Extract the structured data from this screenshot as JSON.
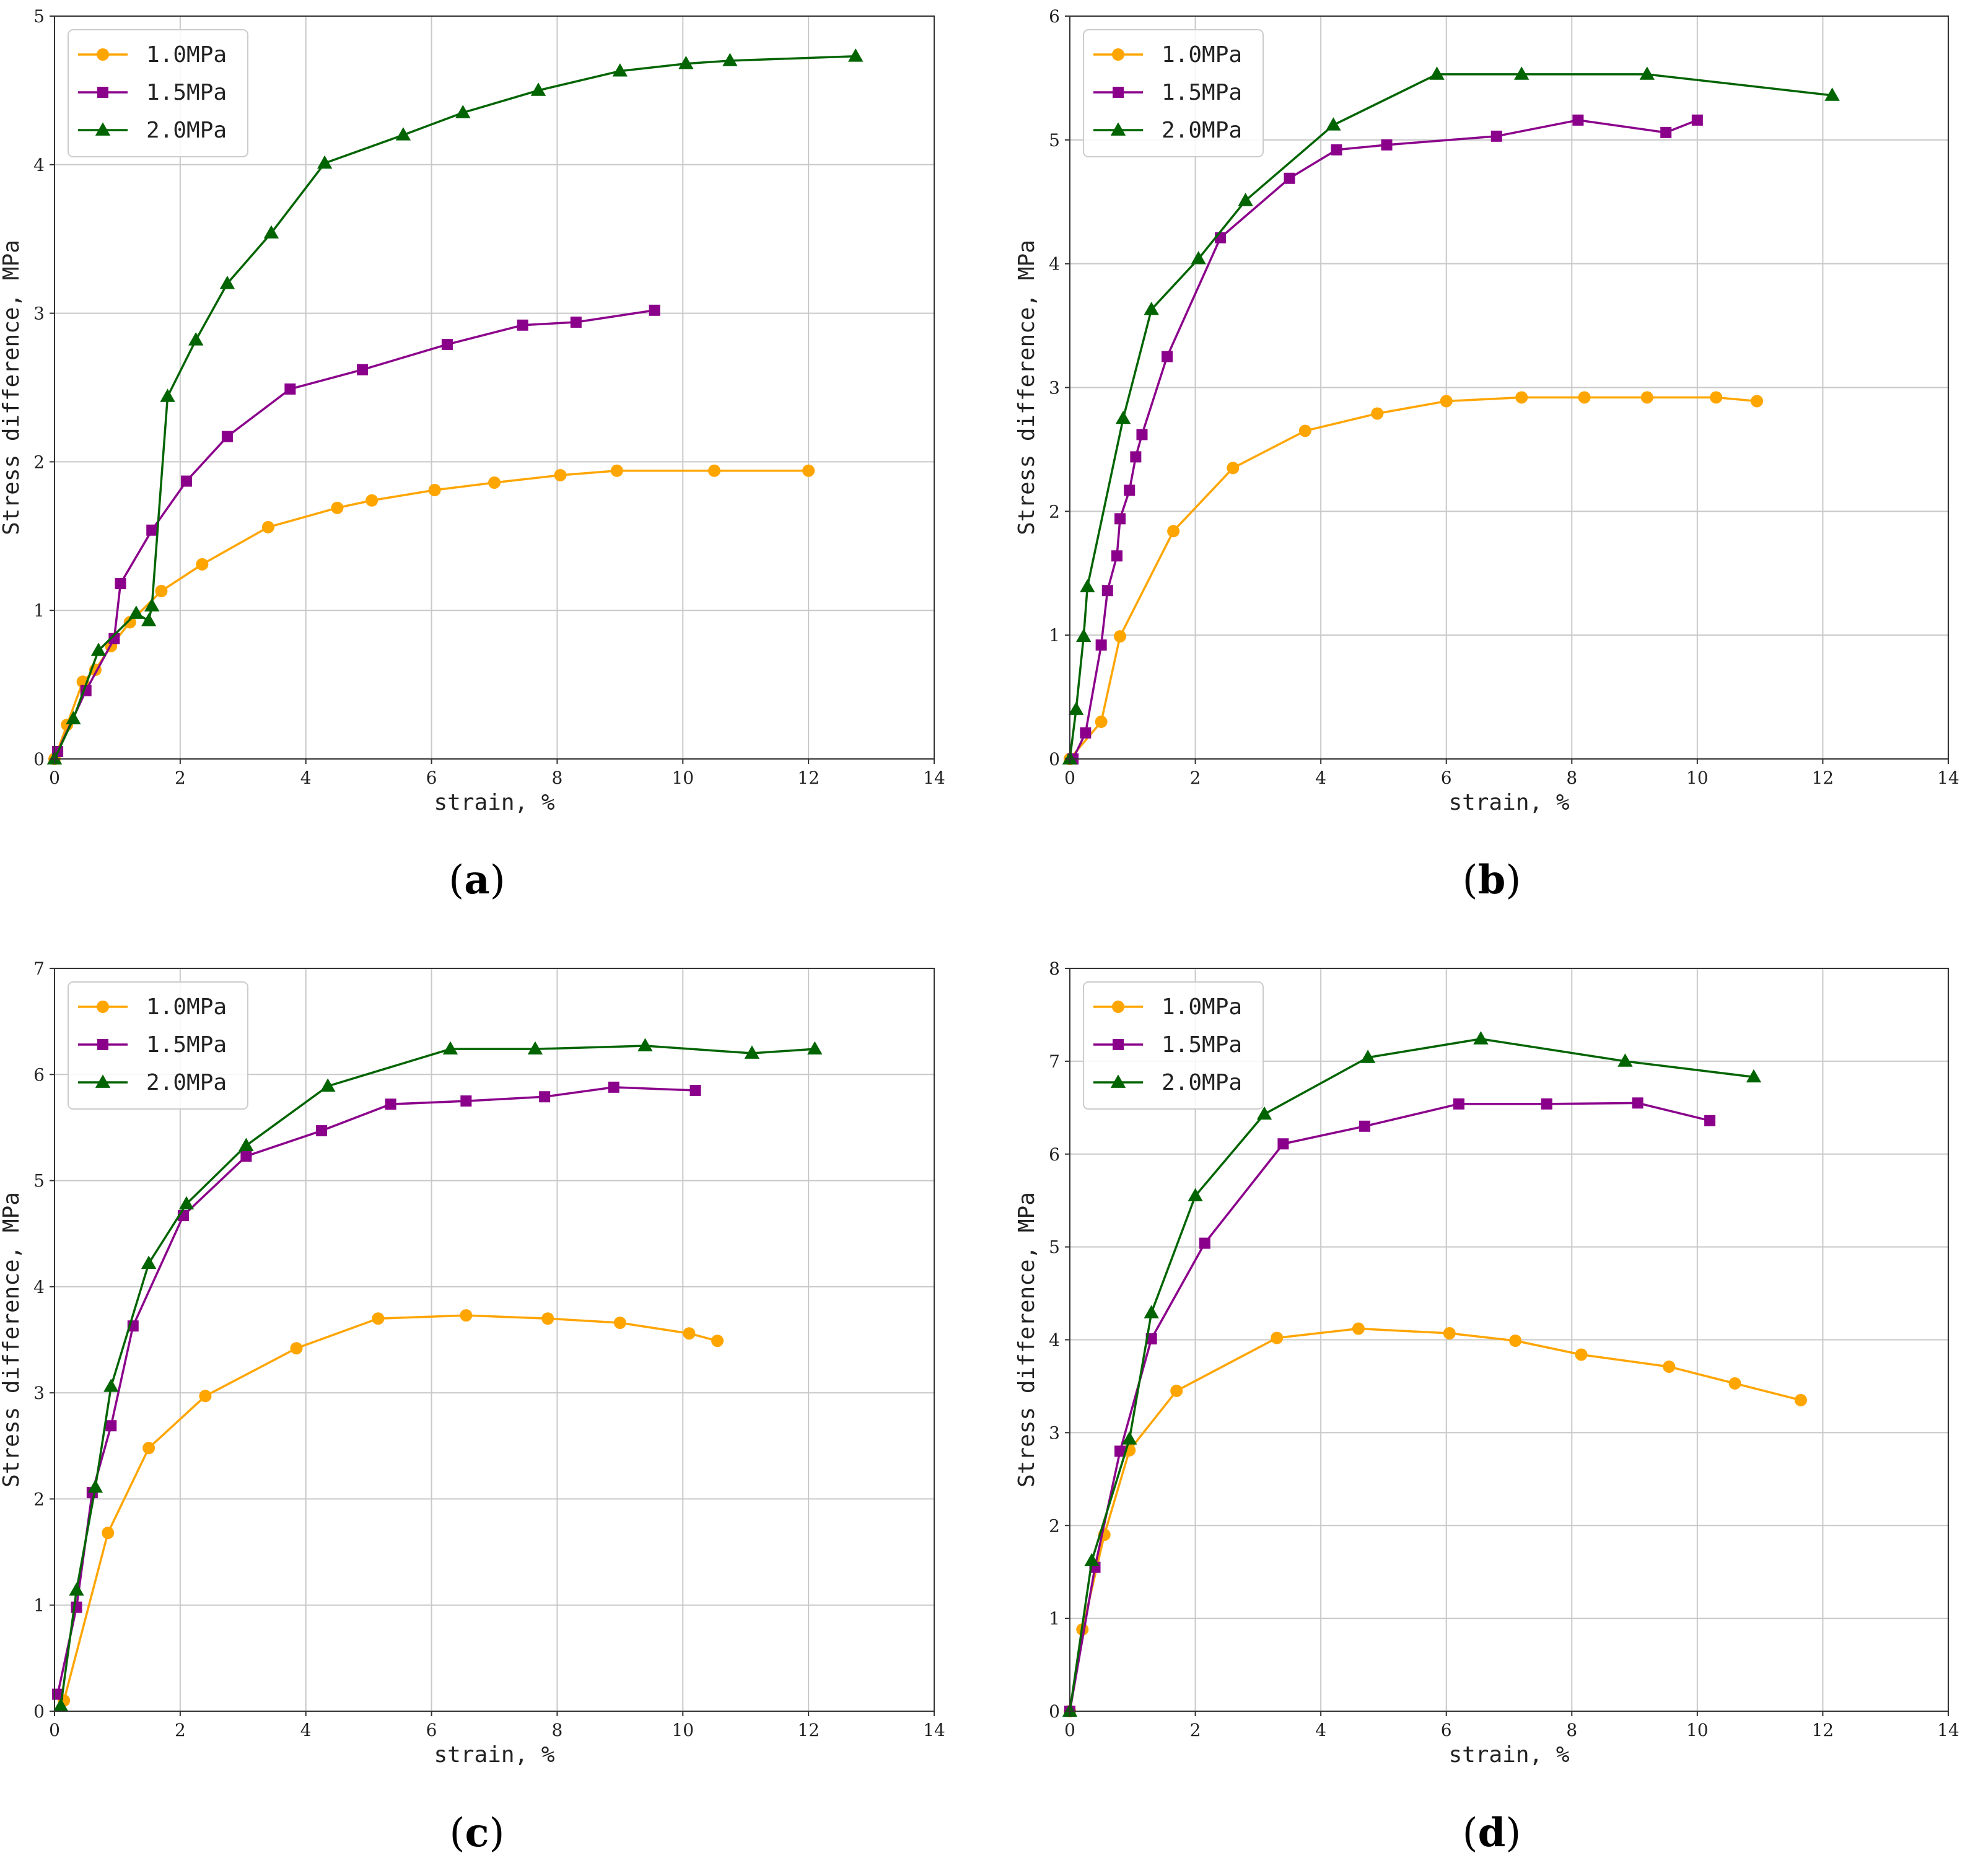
{
  "colors": {
    "series_1_0": "#FFA500",
    "series_1_5": "#8B008B",
    "series_2_0": "#006400",
    "grid": "#c8c8c8"
  },
  "chart_data": [
    {
      "panel": "a",
      "type": "line",
      "xlabel": "strain, %",
      "ylabel": "Stress difference, MPa",
      "xlim": [
        0,
        14
      ],
      "ylim": [
        0,
        5
      ],
      "xticks": [
        0,
        2,
        4,
        6,
        8,
        10,
        12,
        14
      ],
      "yticks": [
        0,
        1,
        2,
        3,
        4,
        5
      ],
      "grid": true,
      "legend": "top-left",
      "series": [
        {
          "name": "1.0MPa",
          "marker": "circle",
          "color": "#FFA500",
          "x": [
            0,
            0.2,
            0.45,
            0.65,
            0.9,
            1.2,
            1.7,
            2.35,
            3.4,
            4.5,
            5.05,
            6.05,
            7.0,
            8.05,
            8.95,
            10.5,
            12.0
          ],
          "y": [
            0,
            0.23,
            0.52,
            0.6,
            0.76,
            0.92,
            1.13,
            1.31,
            1.56,
            1.69,
            1.74,
            1.81,
            1.86,
            1.91,
            1.94,
            1.94,
            1.94
          ]
        },
        {
          "name": "1.5MPa",
          "marker": "square",
          "color": "#8B008B",
          "x": [
            0.05,
            0.5,
            0.95,
            1.05,
            1.55,
            2.1,
            2.75,
            3.75,
            4.9,
            6.25,
            7.45,
            8.3,
            9.55
          ],
          "y": [
            0.05,
            0.46,
            0.81,
            1.18,
            1.54,
            1.87,
            2.17,
            2.49,
            2.62,
            2.79,
            2.92,
            2.94,
            3.02
          ]
        },
        {
          "name": "2.0MPa",
          "marker": "triangle",
          "color": "#006400",
          "x": [
            0,
            0.3,
            0.7,
            1.3,
            1.5,
            1.55,
            1.8,
            2.25,
            2.75,
            3.45,
            4.3,
            5.55,
            6.5,
            7.7,
            9.0,
            10.05,
            10.75,
            12.75
          ],
          "y": [
            0,
            0.27,
            0.73,
            0.98,
            0.93,
            1.03,
            2.44,
            2.82,
            3.2,
            3.54,
            4.01,
            4.2,
            4.35,
            4.5,
            4.63,
            4.68,
            4.7,
            4.73
          ]
        }
      ]
    },
    {
      "panel": "b",
      "type": "line",
      "xlabel": "strain, %",
      "ylabel": "Stress difference, MPa",
      "xlim": [
        0,
        14
      ],
      "ylim": [
        0,
        6
      ],
      "xticks": [
        0,
        2,
        4,
        6,
        8,
        10,
        12,
        14
      ],
      "yticks": [
        0,
        1,
        2,
        3,
        4,
        5,
        6
      ],
      "grid": true,
      "legend": "top-left",
      "series": [
        {
          "name": "1.0MPa",
          "marker": "circle",
          "color": "#FFA500",
          "x": [
            0,
            0.5,
            0.8,
            1.65,
            2.6,
            3.75,
            4.9,
            6.0,
            7.2,
            8.2,
            9.2,
            10.3,
            10.95
          ],
          "y": [
            0,
            0.3,
            0.99,
            1.84,
            2.35,
            2.65,
            2.79,
            2.89,
            2.92,
            2.92,
            2.92,
            2.92,
            2.89
          ]
        },
        {
          "name": "1.5MPa",
          "marker": "square",
          "color": "#8B008B",
          "x": [
            0.05,
            0.25,
            0.5,
            0.6,
            0.75,
            0.8,
            0.95,
            1.05,
            1.15,
            1.55,
            2.4,
            3.5,
            4.25,
            5.05,
            6.8,
            8.1,
            9.5,
            10.0
          ],
          "y": [
            0,
            0.21,
            0.92,
            1.36,
            1.64,
            1.94,
            2.17,
            2.44,
            2.62,
            3.25,
            4.21,
            4.69,
            4.92,
            4.96,
            5.03,
            5.16,
            5.06,
            5.16
          ]
        },
        {
          "name": "2.0MPa",
          "marker": "triangle",
          "color": "#006400",
          "x": [
            0,
            0.1,
            0.22,
            0.28,
            0.85,
            1.3,
            2.05,
            2.8,
            4.2,
            5.85,
            7.2,
            9.2,
            12.15
          ],
          "y": [
            0,
            0.4,
            0.99,
            1.39,
            2.75,
            3.63,
            4.04,
            4.51,
            5.12,
            5.53,
            5.53,
            5.53,
            5.36
          ]
        }
      ]
    },
    {
      "panel": "c",
      "type": "line",
      "xlabel": "strain, %",
      "ylabel": "Stress difference, MPa",
      "xlim": [
        0,
        14
      ],
      "ylim": [
        0,
        7
      ],
      "xticks": [
        0,
        2,
        4,
        6,
        8,
        10,
        12,
        14
      ],
      "yticks": [
        0,
        1,
        2,
        3,
        4,
        5,
        6,
        7
      ],
      "grid": true,
      "legend": "top-left",
      "series": [
        {
          "name": "1.0MPa",
          "marker": "circle",
          "color": "#FFA500",
          "x": [
            0.15,
            0.85,
            1.5,
            2.4,
            3.85,
            5.15,
            6.55,
            7.85,
            9.0,
            10.1,
            10.55
          ],
          "y": [
            0.1,
            1.68,
            2.48,
            2.97,
            3.42,
            3.7,
            3.73,
            3.7,
            3.66,
            3.56,
            3.49
          ]
        },
        {
          "name": "1.5MPa",
          "marker": "square",
          "color": "#8B008B",
          "x": [
            0.05,
            0.35,
            0.6,
            0.9,
            1.25,
            2.05,
            3.05,
            4.25,
            5.35,
            6.55,
            7.8,
            8.9,
            10.2
          ],
          "y": [
            0.16,
            0.98,
            2.06,
            2.69,
            3.63,
            4.67,
            5.23,
            5.47,
            5.72,
            5.75,
            5.79,
            5.88,
            5.85
          ]
        },
        {
          "name": "2.0MPa",
          "marker": "triangle",
          "color": "#006400",
          "x": [
            0.1,
            0.35,
            0.65,
            0.9,
            1.5,
            2.1,
            3.05,
            4.35,
            6.3,
            7.65,
            9.4,
            11.1,
            12.1
          ],
          "y": [
            0.05,
            1.14,
            2.11,
            3.06,
            4.22,
            4.78,
            5.33,
            5.89,
            6.24,
            6.24,
            6.27,
            6.2,
            6.24
          ]
        }
      ]
    },
    {
      "panel": "d",
      "type": "line",
      "xlabel": "strain, %",
      "ylabel": "Stress difference, MPa",
      "xlim": [
        0,
        14
      ],
      "ylim": [
        0,
        8
      ],
      "xticks": [
        0,
        2,
        4,
        6,
        8,
        10,
        12,
        14
      ],
      "yticks": [
        0,
        1,
        2,
        3,
        4,
        5,
        6,
        7,
        8
      ],
      "grid": true,
      "legend": "top-left",
      "series": [
        {
          "name": "1.0MPa",
          "marker": "circle",
          "color": "#FFA500",
          "x": [
            0,
            0.2,
            0.55,
            0.95,
            1.7,
            3.3,
            4.6,
            6.05,
            7.1,
            8.15,
            9.55,
            10.6,
            11.65
          ],
          "y": [
            0,
            0.88,
            1.9,
            2.81,
            3.45,
            4.02,
            4.12,
            4.07,
            3.99,
            3.84,
            3.71,
            3.53,
            3.35
          ]
        },
        {
          "name": "1.5MPa",
          "marker": "square",
          "color": "#8B008B",
          "x": [
            0,
            0.4,
            0.8,
            1.3,
            2.15,
            3.4,
            4.7,
            6.2,
            7.6,
            9.05,
            10.2
          ],
          "y": [
            0,
            1.55,
            2.8,
            4.01,
            5.04,
            6.11,
            6.3,
            6.54,
            6.54,
            6.55,
            6.36
          ]
        },
        {
          "name": "2.0MPa",
          "marker": "triangle",
          "color": "#006400",
          "x": [
            0,
            0.35,
            0.95,
            1.3,
            2.0,
            3.1,
            4.75,
            6.55,
            8.85,
            10.9
          ],
          "y": [
            0,
            1.62,
            2.93,
            4.29,
            5.55,
            6.43,
            7.04,
            7.24,
            7.0,
            6.83
          ]
        }
      ]
    }
  ]
}
